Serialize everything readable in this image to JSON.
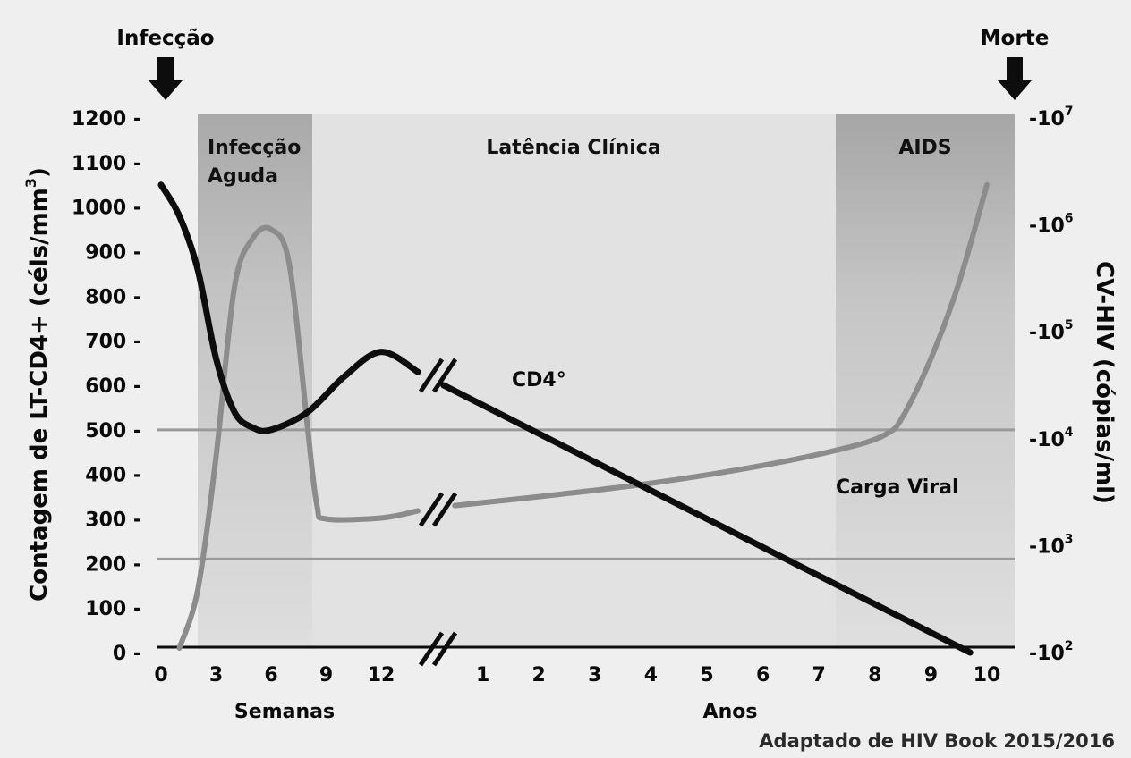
{
  "chart_data": {
    "type": "line",
    "events": {
      "start": "Infecção",
      "end": "Morte"
    },
    "phases": [
      {
        "label_lines": [
          "Infecção",
          "Aguda"
        ]
      },
      {
        "label_lines": [
          "Latência Clínica"
        ]
      },
      {
        "label_lines": [
          "AIDS"
        ]
      }
    ],
    "y_left": {
      "title": "Contagem de LT-CD4+ (céls/mm",
      "title_sup": "3",
      "title_end": ")",
      "ticks": [
        0,
        100,
        200,
        300,
        400,
        500,
        600,
        700,
        800,
        900,
        1000,
        1100,
        1200
      ],
      "tick_labels": [
        "0 -",
        "100 -",
        "200 -",
        "300 -",
        "400 -",
        "500 -",
        "600 -",
        "700 -",
        "800 -",
        "900 -",
        "1000 -",
        "1100 -",
        "1200 -"
      ],
      "ylim": [
        0,
        1200
      ]
    },
    "y_right": {
      "title": "CV-HIV (cópias/ml)",
      "scale": "log",
      "tick_labels": [
        {
          "base": "-10",
          "exp": "2"
        },
        {
          "base": "-10",
          "exp": "3"
        },
        {
          "base": "-10",
          "exp": "4"
        },
        {
          "base": "-10",
          "exp": "5"
        },
        {
          "base": "-10",
          "exp": "6"
        },
        {
          "base": "-10",
          "exp": "7"
        }
      ]
    },
    "x_weeks": {
      "label": "Semanas",
      "ticks": [
        "0",
        "3",
        "6",
        "9",
        "12"
      ]
    },
    "x_years": {
      "label": "Anos",
      "ticks": [
        "1",
        "2",
        "3",
        "4",
        "5",
        "6",
        "7",
        "8",
        "9",
        "10"
      ]
    },
    "reference_lines": [
      500,
      210
    ],
    "series": [
      {
        "name": "CD4°",
        "color": "#0d0d0d",
        "segment_weeks": [
          [
            0,
            1050
          ],
          [
            1,
            980
          ],
          [
            2,
            860
          ],
          [
            3,
            660
          ],
          [
            4,
            540
          ],
          [
            5,
            505
          ],
          [
            6,
            500
          ],
          [
            8,
            540
          ],
          [
            10,
            620
          ],
          [
            12,
            675
          ],
          [
            14,
            630
          ]
        ],
        "segment_years": [
          [
            0.3,
            600
          ],
          [
            9.7,
            0
          ]
        ]
      },
      {
        "name": "Carga Viral",
        "color": "#8c8c8c",
        "segment_weeks": [
          [
            1,
            10
          ],
          [
            2,
            140
          ],
          [
            3,
            440
          ],
          [
            4,
            820
          ],
          [
            5,
            930
          ],
          [
            6,
            950
          ],
          [
            7,
            870
          ],
          [
            8,
            500
          ],
          [
            8.5,
            330
          ],
          [
            9,
            300
          ],
          [
            12,
            302
          ],
          [
            14,
            318
          ]
        ],
        "segment_years": [
          [
            0.5,
            330
          ],
          [
            2,
            350
          ],
          [
            4,
            380
          ],
          [
            6,
            420
          ],
          [
            7.5,
            460
          ],
          [
            8.2,
            490
          ],
          [
            8.5,
            530
          ],
          [
            9,
            660
          ],
          [
            9.5,
            830
          ],
          [
            10,
            1050
          ]
        ]
      }
    ]
  },
  "caption": "Adaptado de HIV Book 2015/2016"
}
